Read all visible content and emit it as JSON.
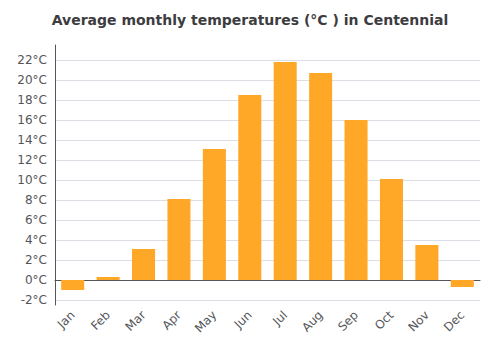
{
  "chart_data": {
    "type": "bar",
    "title": "Average monthly temperatures (°C ) in Centennial",
    "categories": [
      "Jan",
      "Feb",
      "Mar",
      "Apr",
      "May",
      "Jun",
      "Jul",
      "Aug",
      "Sep",
      "Oct",
      "Nov",
      "Dec"
    ],
    "values": [
      -1.0,
      0.3,
      3.1,
      8.1,
      13.1,
      18.5,
      21.8,
      20.7,
      16.0,
      10.1,
      3.5,
      -0.7
    ],
    "color": "#FFA726",
    "ylim": [
      -2.5,
      23.5
    ],
    "yticks": [
      {
        "value": -2,
        "label": "-2°C"
      },
      {
        "value": 0,
        "label": "0°C"
      },
      {
        "value": 2,
        "label": "2°C"
      },
      {
        "value": 4,
        "label": "4°C"
      },
      {
        "value": 6,
        "label": "6°C"
      },
      {
        "value": 8,
        "label": "8°C"
      },
      {
        "value": 10,
        "label": "10°C"
      },
      {
        "value": 12,
        "label": "12°C"
      },
      {
        "value": 14,
        "label": "14°C"
      },
      {
        "value": 16,
        "label": "16°C"
      },
      {
        "value": 18,
        "label": "18°C"
      },
      {
        "value": 20,
        "label": "20°C"
      },
      {
        "value": 22,
        "label": "22°C"
      }
    ],
    "grid": true
  }
}
